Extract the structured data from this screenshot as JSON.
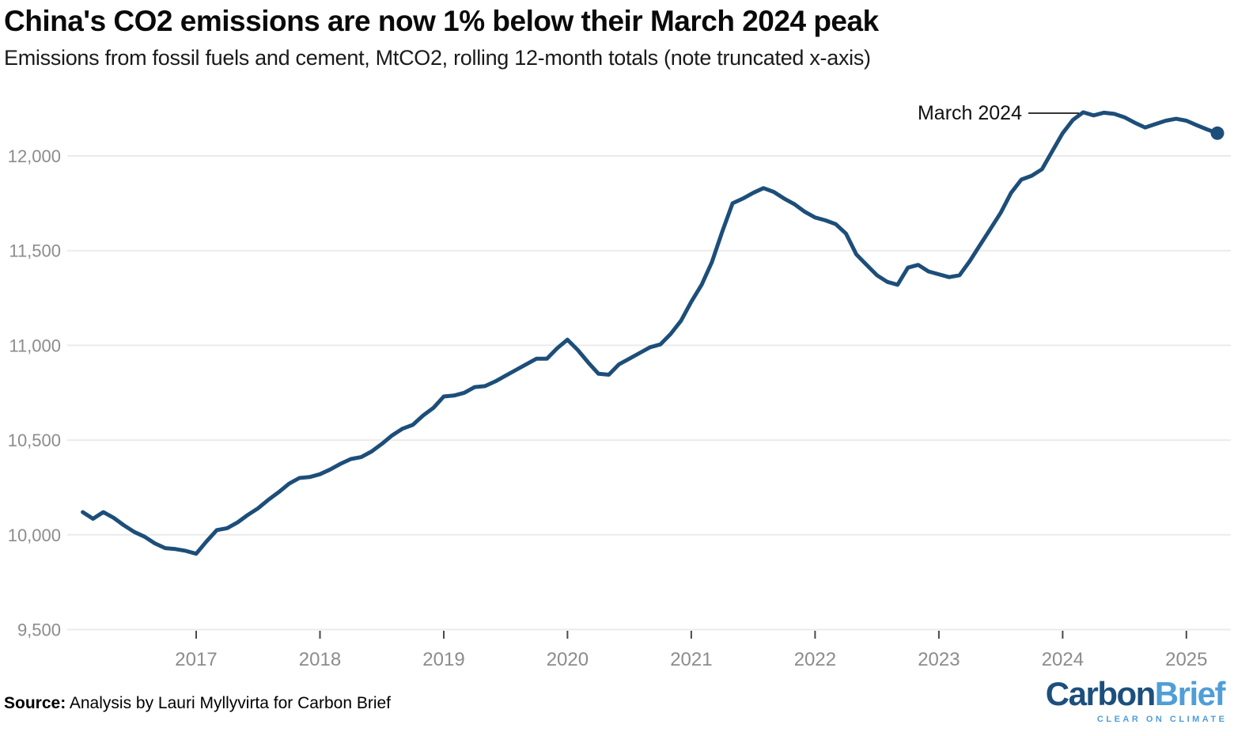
{
  "header": {
    "title": "China's CO2 emissions are now 1% below their March 2024 peak",
    "subtitle": "Emissions from fossil fuels and cement, MtCO2, rolling 12-month totals (note truncated x-axis)"
  },
  "annotation": {
    "label": "March 2024"
  },
  "source": {
    "prefix": "Source:",
    "text": "Analysis by Lauri Myllyvirta for Carbon Brief"
  },
  "logo": {
    "word1": "Carbon",
    "word2": "Brief",
    "tagline": "CLEAR ON CLIMATE"
  },
  "colors": {
    "line": "#1d4e79",
    "grid": "#ebebeb",
    "tick": "#4a4a4a",
    "axis_label": "#8c8c8c",
    "annotation": "#1a1a1a",
    "logo_dark": "#1c4f7d",
    "logo_light": "#4f9ed7"
  },
  "chart_data": {
    "type": "line",
    "title": "China's CO2 emissions are now 1% below their March 2024 peak",
    "subtitle": "Emissions from fossil fuels and cement, MtCO2, rolling 12-month totals (note truncated x-axis)",
    "xlabel": "",
    "ylabel": "MtCO2, rolling 12-month totals",
    "ylim": [
      9500,
      12280
    ],
    "y_ticks": [
      9500,
      10000,
      10500,
      11000,
      11500,
      12000
    ],
    "x_tick_years": [
      2017,
      2018,
      2019,
      2020,
      2021,
      2022,
      2023,
      2024,
      2025
    ],
    "grid": "horizontal",
    "legend": "none",
    "annotated_peak": {
      "month": "2024-03",
      "value": 12230,
      "label": "March 2024"
    },
    "latest_point": {
      "month": "2025-04",
      "value": 12120
    },
    "x": [
      "2016-02",
      "2016-03",
      "2016-04",
      "2016-05",
      "2016-06",
      "2016-07",
      "2016-08",
      "2016-09",
      "2016-10",
      "2016-11",
      "2016-12",
      "2017-01",
      "2017-02",
      "2017-03",
      "2017-04",
      "2017-05",
      "2017-06",
      "2017-07",
      "2017-08",
      "2017-09",
      "2017-10",
      "2017-11",
      "2017-12",
      "2018-01",
      "2018-02",
      "2018-03",
      "2018-04",
      "2018-05",
      "2018-06",
      "2018-07",
      "2018-08",
      "2018-09",
      "2018-10",
      "2018-11",
      "2018-12",
      "2019-01",
      "2019-02",
      "2019-03",
      "2019-04",
      "2019-05",
      "2019-06",
      "2019-07",
      "2019-08",
      "2019-09",
      "2019-10",
      "2019-11",
      "2019-12",
      "2020-01",
      "2020-02",
      "2020-03",
      "2020-04",
      "2020-05",
      "2020-06",
      "2020-07",
      "2020-08",
      "2020-09",
      "2020-10",
      "2020-11",
      "2020-12",
      "2021-01",
      "2021-02",
      "2021-03",
      "2021-04",
      "2021-05",
      "2021-06",
      "2021-07",
      "2021-08",
      "2021-09",
      "2021-10",
      "2021-11",
      "2021-12",
      "2022-01",
      "2022-02",
      "2022-03",
      "2022-04",
      "2022-05",
      "2022-06",
      "2022-07",
      "2022-08",
      "2022-09",
      "2022-10",
      "2022-11",
      "2022-12",
      "2023-01",
      "2023-02",
      "2023-03",
      "2023-04",
      "2023-05",
      "2023-06",
      "2023-07",
      "2023-08",
      "2023-09",
      "2023-10",
      "2023-11",
      "2023-12",
      "2024-01",
      "2024-02",
      "2024-03",
      "2024-04",
      "2024-05",
      "2024-06",
      "2024-07",
      "2024-08",
      "2024-09",
      "2024-10",
      "2024-11",
      "2024-12",
      "2025-01",
      "2025-02",
      "2025-03",
      "2025-04"
    ],
    "values": [
      10120,
      10085,
      10120,
      10090,
      10050,
      10015,
      9990,
      9955,
      9930,
      9925,
      9915,
      9900,
      9965,
      10025,
      10035,
      10065,
      10105,
      10140,
      10185,
      10225,
      10270,
      10300,
      10305,
      10320,
      10345,
      10375,
      10400,
      10410,
      10440,
      10480,
      10525,
      10560,
      10580,
      10630,
      10670,
      10730,
      10735,
      10750,
      10780,
      10785,
      10810,
      10840,
      10870,
      10900,
      10930,
      10930,
      10985,
      11030,
      10975,
      10910,
      10850,
      10845,
      10900,
      10930,
      10960,
      10990,
      11005,
      11060,
      11130,
      11230,
      11320,
      11440,
      11600,
      11750,
      11775,
      11805,
      11830,
      11810,
      11775,
      11745,
      11705,
      11675,
      11660,
      11640,
      11590,
      11480,
      11425,
      11370,
      11335,
      11320,
      11410,
      11425,
      11390,
      11375,
      11360,
      11370,
      11445,
      11530,
      11615,
      11700,
      11805,
      11875,
      11895,
      11930,
      12025,
      12120,
      12190,
      12230,
      12214,
      12228,
      12222,
      12204,
      12175,
      12150,
      12168,
      12186,
      12196,
      12186,
      12162,
      12140,
      12120
    ]
  }
}
